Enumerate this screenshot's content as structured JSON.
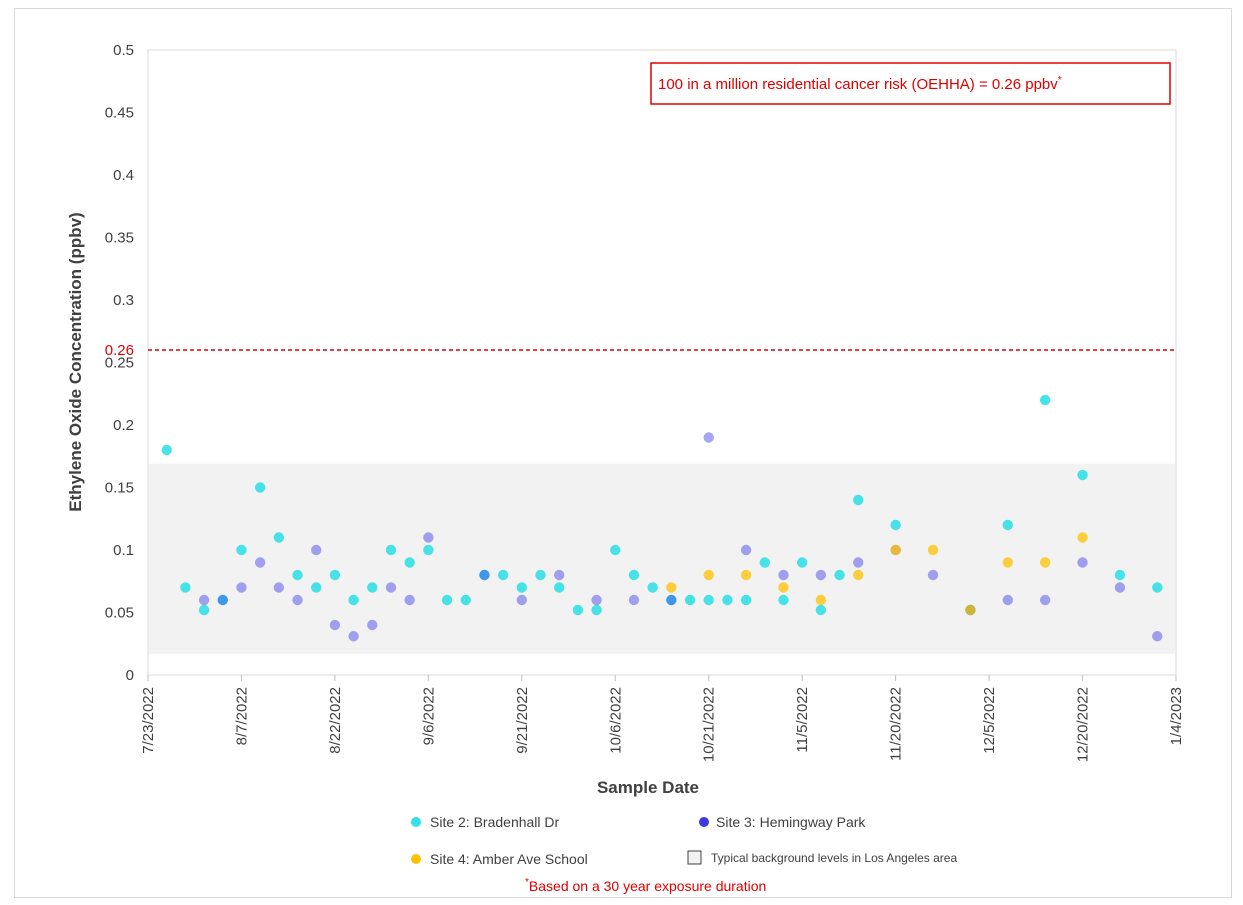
{
  "chart_data": {
    "type": "scatter",
    "title": "",
    "xlabel": "Sample Date",
    "ylabel": "Ethylene Oxide Concentration (ppbv)",
    "ylim": [
      0,
      0.5
    ],
    "yticks": [
      "0",
      "0.05",
      "0.1",
      "0.15",
      "0.2",
      "0.25",
      "0.3",
      "0.35",
      "0.4",
      "0.45",
      "0.5"
    ],
    "xlim": [
      "2022-07-23",
      "2023-01-04"
    ],
    "xticks": [
      {
        "date": "2022-07-23",
        "label": "7/23/2022"
      },
      {
        "date": "2022-08-07",
        "label": "8/7/2022"
      },
      {
        "date": "2022-08-22",
        "label": "8/22/2022"
      },
      {
        "date": "2022-09-06",
        "label": "9/6/2022"
      },
      {
        "date": "2022-09-21",
        "label": "9/21/2022"
      },
      {
        "date": "2022-10-06",
        "label": "10/6/2022"
      },
      {
        "date": "2022-10-21",
        "label": "10/21/2022"
      },
      {
        "date": "2022-11-05",
        "label": "11/5/2022"
      },
      {
        "date": "2022-11-20",
        "label": "11/20/2022"
      },
      {
        "date": "2022-12-05",
        "label": "12/5/2022"
      },
      {
        "date": "2022-12-20",
        "label": "12/20/2022"
      },
      {
        "date": "2023-01-04",
        "label": "1/4/2023"
      }
    ],
    "background_band": {
      "ymin": 0.017,
      "ymax": 0.169,
      "label": "Typical background levels in Los Angeles area",
      "color": "#f2f2f2"
    },
    "threshold": {
      "y": 0.26,
      "label": "0.26",
      "color": "#e00000"
    },
    "annotation": "100 in a million residential cancer risk (OEHHA) = 0.26 ppbv",
    "annotation_mark": "*",
    "footnote_mark": "*",
    "footnote": "Based on a 30 year exposure duration",
    "legend_placement": "bottom",
    "grid": false,
    "series": [
      {
        "name": "Site 2: Bradenhall Dr",
        "color": "#33e0e6",
        "points": [
          {
            "x": "2022-07-26",
            "y": 0.18
          },
          {
            "x": "2022-07-29",
            "y": 0.07
          },
          {
            "x": "2022-08-01",
            "y": 0.052
          },
          {
            "x": "2022-08-04",
            "y": 0.06
          },
          {
            "x": "2022-08-07",
            "y": 0.1
          },
          {
            "x": "2022-08-10",
            "y": 0.15
          },
          {
            "x": "2022-08-13",
            "y": 0.11
          },
          {
            "x": "2022-08-16",
            "y": 0.08
          },
          {
            "x": "2022-08-19",
            "y": 0.07
          },
          {
            "x": "2022-08-22",
            "y": 0.08
          },
          {
            "x": "2022-08-25",
            "y": 0.06
          },
          {
            "x": "2022-08-28",
            "y": 0.07
          },
          {
            "x": "2022-08-31",
            "y": 0.1
          },
          {
            "x": "2022-09-03",
            "y": 0.09
          },
          {
            "x": "2022-09-06",
            "y": 0.1
          },
          {
            "x": "2022-09-09",
            "y": 0.06
          },
          {
            "x": "2022-09-12",
            "y": 0.06
          },
          {
            "x": "2022-09-15",
            "y": 0.08
          },
          {
            "x": "2022-09-18",
            "y": 0.08
          },
          {
            "x": "2022-09-21",
            "y": 0.07
          },
          {
            "x": "2022-09-24",
            "y": 0.08
          },
          {
            "x": "2022-09-27",
            "y": 0.07
          },
          {
            "x": "2022-09-30",
            "y": 0.052
          },
          {
            "x": "2022-10-03",
            "y": 0.052
          },
          {
            "x": "2022-10-06",
            "y": 0.1
          },
          {
            "x": "2022-10-09",
            "y": 0.08
          },
          {
            "x": "2022-10-12",
            "y": 0.07
          },
          {
            "x": "2022-10-15",
            "y": 0.06
          },
          {
            "x": "2022-10-18",
            "y": 0.06
          },
          {
            "x": "2022-10-21",
            "y": 0.06
          },
          {
            "x": "2022-10-24",
            "y": 0.06
          },
          {
            "x": "2022-10-27",
            "y": 0.06
          },
          {
            "x": "2022-10-30",
            "y": 0.09
          },
          {
            "x": "2022-11-02",
            "y": 0.06
          },
          {
            "x": "2022-11-05",
            "y": 0.09
          },
          {
            "x": "2022-11-08",
            "y": 0.052
          },
          {
            "x": "2022-11-11",
            "y": 0.08
          },
          {
            "x": "2022-11-14",
            "y": 0.14
          },
          {
            "x": "2022-11-20",
            "y": 0.12
          },
          {
            "x": "2022-12-02",
            "y": 0.052
          },
          {
            "x": "2022-12-08",
            "y": 0.12
          },
          {
            "x": "2022-12-14",
            "y": 0.22
          },
          {
            "x": "2022-12-20",
            "y": 0.16
          },
          {
            "x": "2022-12-26",
            "y": 0.08
          },
          {
            "x": "2023-01-01",
            "y": 0.07
          }
        ]
      },
      {
        "name": "Site 3: Hemingway Park",
        "color": "#3a3ae8",
        "points": [
          {
            "x": "2022-08-01",
            "y": 0.06
          },
          {
            "x": "2022-08-04",
            "y": 0.06
          },
          {
            "x": "2022-08-07",
            "y": 0.07
          },
          {
            "x": "2022-08-10",
            "y": 0.09
          },
          {
            "x": "2022-08-13",
            "y": 0.07
          },
          {
            "x": "2022-08-16",
            "y": 0.06
          },
          {
            "x": "2022-08-19",
            "y": 0.1
          },
          {
            "x": "2022-08-22",
            "y": 0.04
          },
          {
            "x": "2022-08-25",
            "y": 0.031
          },
          {
            "x": "2022-08-28",
            "y": 0.04
          },
          {
            "x": "2022-08-31",
            "y": 0.07
          },
          {
            "x": "2022-09-03",
            "y": 0.06
          },
          {
            "x": "2022-09-06",
            "y": 0.11
          },
          {
            "x": "2022-09-15",
            "y": 0.08
          },
          {
            "x": "2022-09-21",
            "y": 0.06
          },
          {
            "x": "2022-09-27",
            "y": 0.08
          },
          {
            "x": "2022-10-03",
            "y": 0.06
          },
          {
            "x": "2022-10-09",
            "y": 0.06
          },
          {
            "x": "2022-10-15",
            "y": 0.06
          },
          {
            "x": "2022-10-21",
            "y": 0.19
          },
          {
            "x": "2022-10-27",
            "y": 0.1
          },
          {
            "x": "2022-11-02",
            "y": 0.08
          },
          {
            "x": "2022-11-08",
            "y": 0.08
          },
          {
            "x": "2022-11-14",
            "y": 0.09
          },
          {
            "x": "2022-11-20",
            "y": 0.1
          },
          {
            "x": "2022-11-26",
            "y": 0.08
          },
          {
            "x": "2022-12-02",
            "y": 0.052
          },
          {
            "x": "2022-12-08",
            "y": 0.06
          },
          {
            "x": "2022-12-14",
            "y": 0.06
          },
          {
            "x": "2022-12-20",
            "y": 0.09
          },
          {
            "x": "2022-12-26",
            "y": 0.07
          },
          {
            "x": "2023-01-01",
            "y": 0.031
          }
        ]
      },
      {
        "name": "Site 4: Amber Ave School",
        "color": "#ffc000",
        "points": [
          {
            "x": "2022-10-15",
            "y": 0.07
          },
          {
            "x": "2022-10-21",
            "y": 0.08
          },
          {
            "x": "2022-10-27",
            "y": 0.08
          },
          {
            "x": "2022-11-02",
            "y": 0.07
          },
          {
            "x": "2022-11-08",
            "y": 0.06
          },
          {
            "x": "2022-11-14",
            "y": 0.08
          },
          {
            "x": "2022-11-20",
            "y": 0.1
          },
          {
            "x": "2022-11-26",
            "y": 0.1
          },
          {
            "x": "2022-12-02",
            "y": 0.052
          },
          {
            "x": "2022-12-08",
            "y": 0.09
          },
          {
            "x": "2022-12-14",
            "y": 0.09
          },
          {
            "x": "2022-12-20",
            "y": 0.11
          }
        ]
      }
    ]
  }
}
